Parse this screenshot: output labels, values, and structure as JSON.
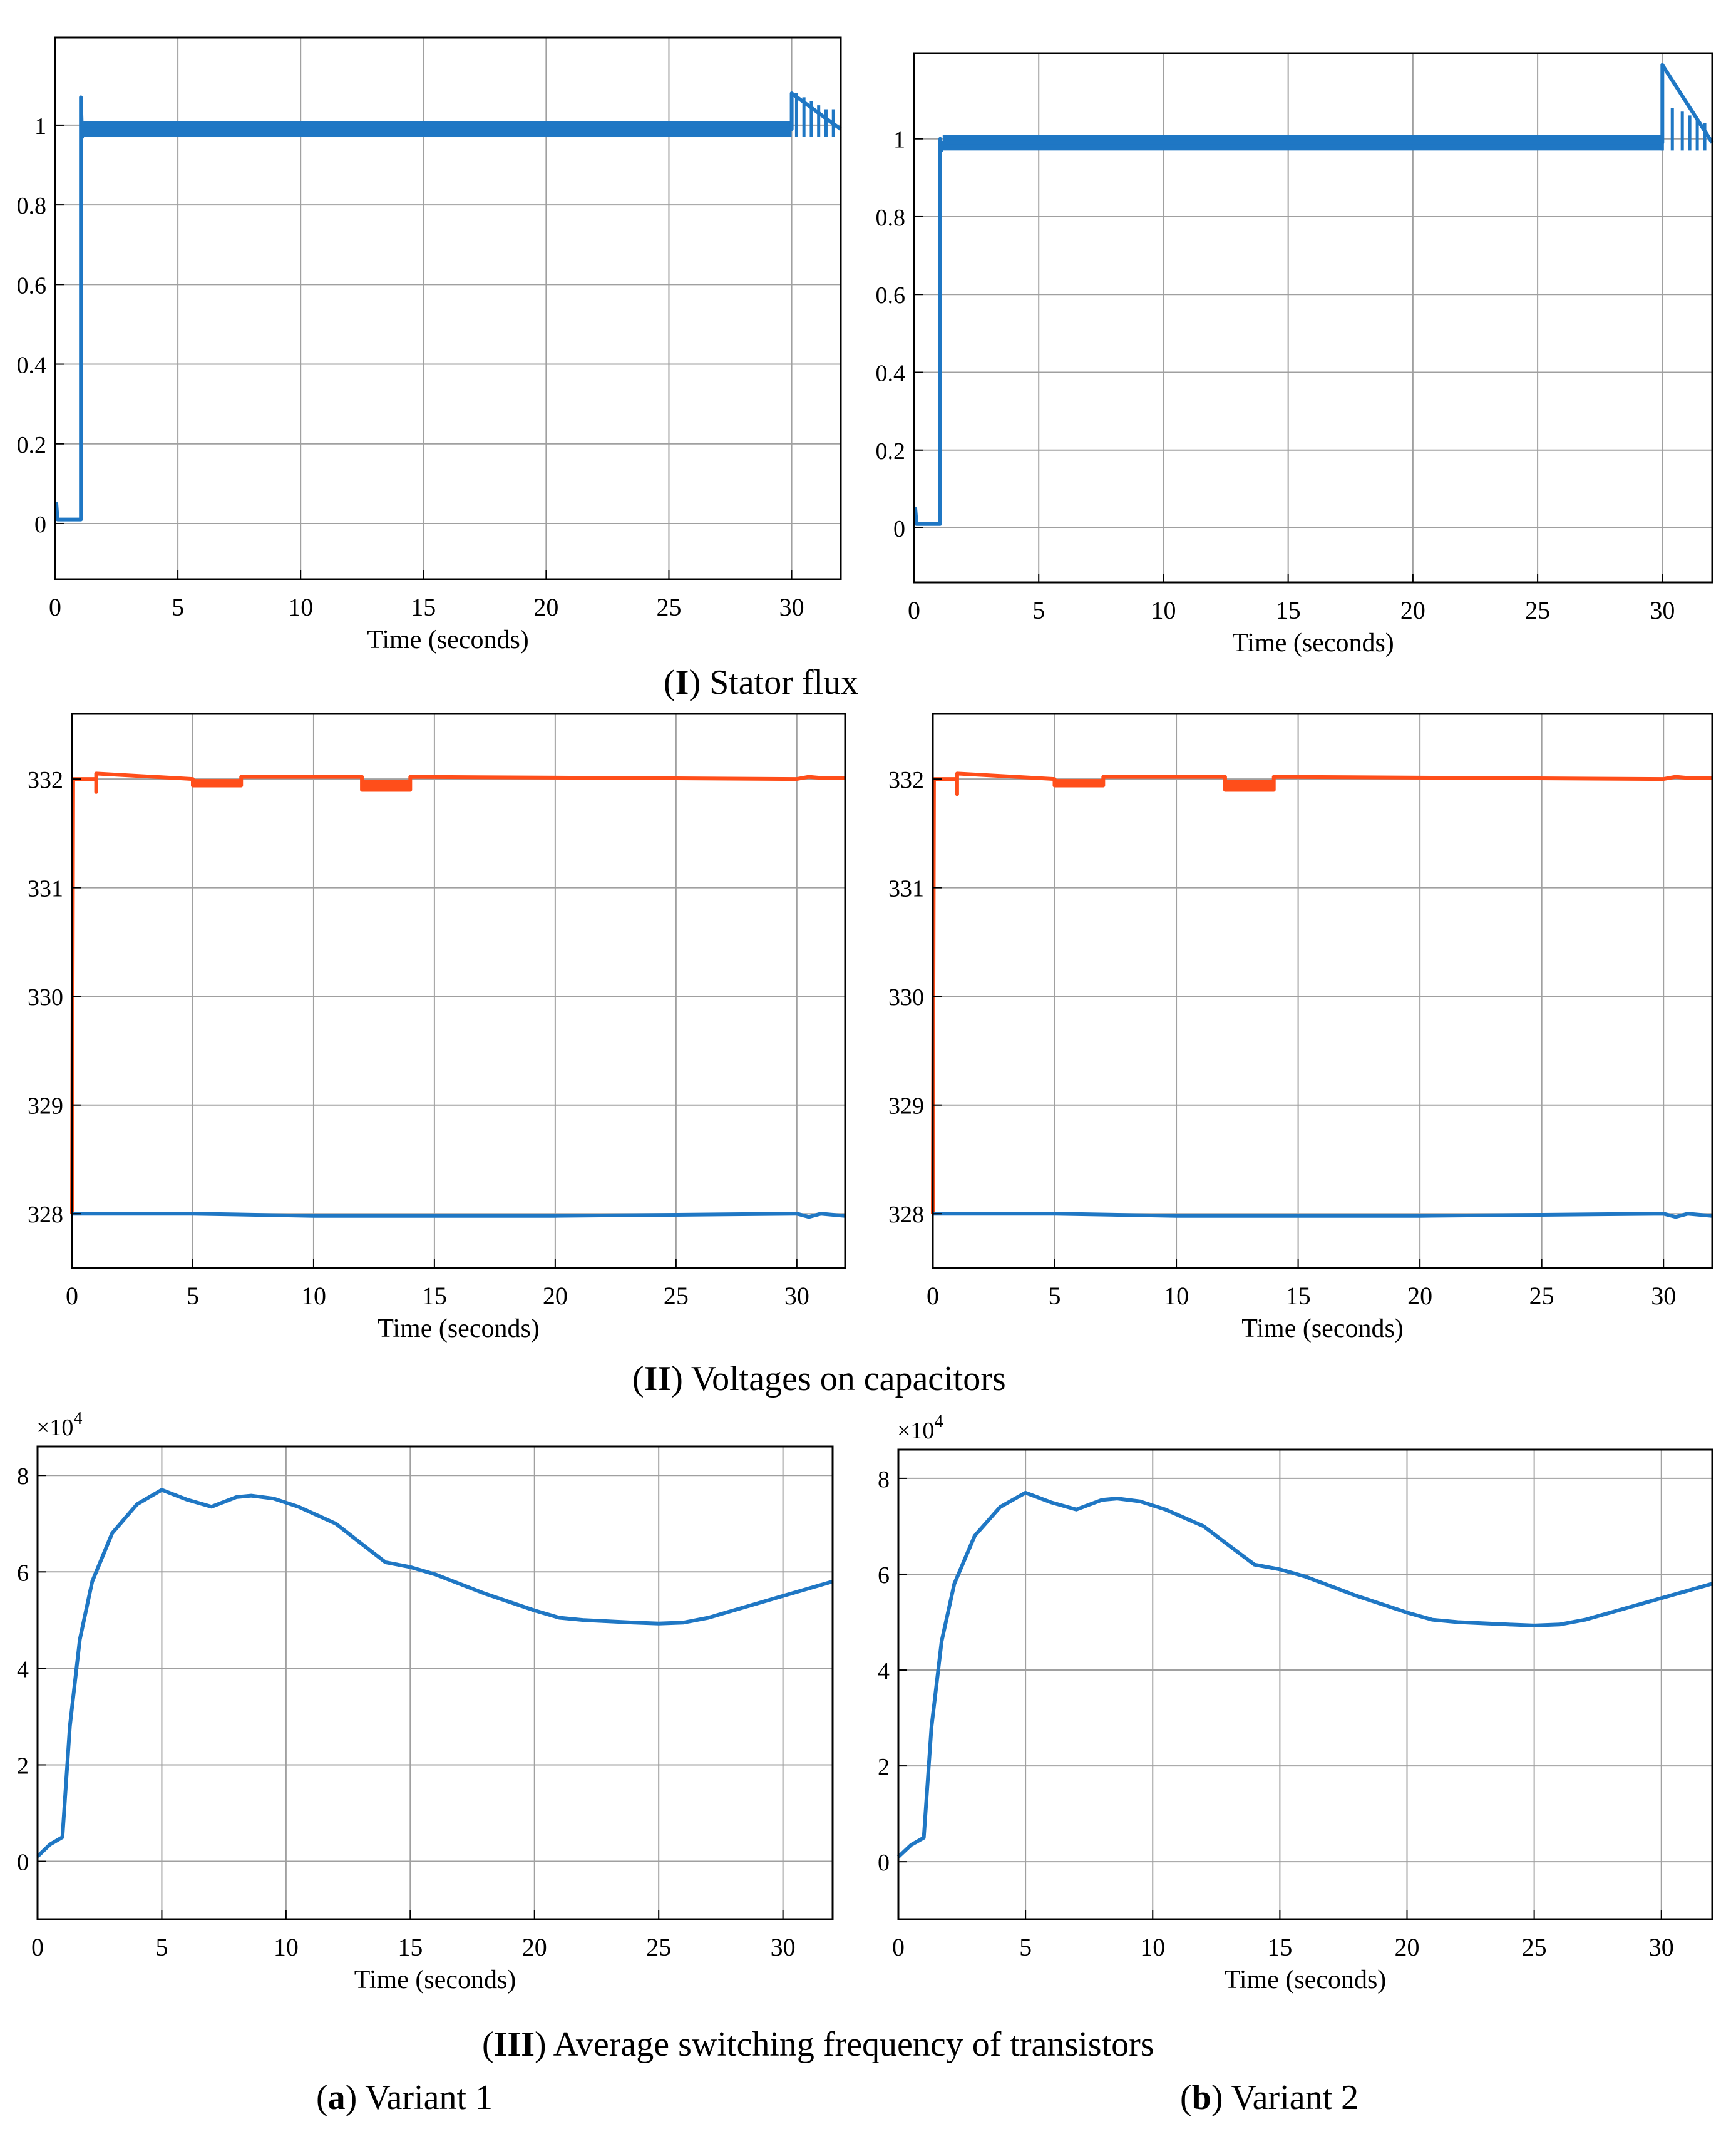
{
  "captions": {
    "row1": {
      "num": "I",
      "text": ") Stator flux"
    },
    "row2": {
      "num": "II",
      "text": ") Voltages on capacitors"
    },
    "row3": {
      "num": "III",
      "text": ") Average switching frequency of transistors"
    },
    "variant_a": {
      "letter": "a",
      "text": ") Variant 1"
    },
    "variant_b": {
      "letter": "b",
      "text": ") Variant 2"
    }
  },
  "colors": {
    "series_blue": "#1f77c4",
    "series_orange": "#ff4e1a",
    "grid": "#a0a0a0",
    "axis": "#000000"
  },
  "chart_data": [
    {
      "type": "line",
      "panel": "I-a",
      "xlabel": "Time (seconds)",
      "ylabel": "",
      "xlim": [
        0,
        32
      ],
      "ylim": [
        -0.14,
        1.22
      ],
      "xticks": [
        0,
        5,
        10,
        15,
        20,
        25,
        30
      ],
      "yticks": [
        0,
        0.2,
        0.4,
        0.6,
        0.8,
        1
      ],
      "yticklabels": [
        "0",
        "0.2",
        "0.4",
        "0.6",
        "0.8",
        "1"
      ],
      "grid": true,
      "series": [
        {
          "color": "#1f77c4",
          "band": [
            0.97,
            1.01
          ],
          "x": [
            0,
            0.05,
            0.1,
            1.05,
            1.05,
            1.1,
            1.15,
            30,
            30,
            32
          ],
          "y": [
            0.05,
            0.05,
            0.01,
            0.01,
            1.07,
            0.97,
            0.99,
            0.99,
            1.08,
            0.99
          ],
          "spikes": [
            {
              "x": 30.2,
              "y": 1.08
            },
            {
              "x": 30.5,
              "y": 1.07
            },
            {
              "x": 30.8,
              "y": 1.06
            },
            {
              "x": 31.1,
              "y": 1.05
            },
            {
              "x": 31.4,
              "y": 1.04
            },
            {
              "x": 31.7,
              "y": 1.04
            }
          ]
        }
      ]
    },
    {
      "type": "line",
      "panel": "I-b",
      "xlabel": "Time (seconds)",
      "ylabel": "",
      "xlim": [
        0,
        32
      ],
      "ylim": [
        -0.14,
        1.22
      ],
      "xticks": [
        0,
        5,
        10,
        15,
        20,
        25,
        30
      ],
      "yticks": [
        0,
        0.2,
        0.4,
        0.6,
        0.8,
        1
      ],
      "yticklabels": [
        "0",
        "0.2",
        "0.4",
        "0.6",
        "0.8",
        "1"
      ],
      "grid": true,
      "series": [
        {
          "color": "#1f77c4",
          "band": [
            0.97,
            1.01
          ],
          "x": [
            0,
            0.05,
            0.1,
            1.05,
            1.05,
            1.1,
            1.15,
            30,
            30,
            32
          ],
          "y": [
            0.05,
            0.05,
            0.01,
            0.01,
            1.0,
            0.97,
            0.99,
            0.99,
            1.19,
            0.99
          ],
          "spikes": [
            {
              "x": 30.0,
              "y": 1.19
            },
            {
              "x": 30.4,
              "y": 1.08
            },
            {
              "x": 30.8,
              "y": 1.07
            },
            {
              "x": 31.1,
              "y": 1.06
            },
            {
              "x": 31.4,
              "y": 1.05
            },
            {
              "x": 31.7,
              "y": 1.04
            }
          ]
        }
      ]
    },
    {
      "type": "line",
      "panel": "II-a",
      "xlabel": "Time (seconds)",
      "ylabel": "",
      "xlim": [
        0,
        32
      ],
      "ylim": [
        327.5,
        332.6
      ],
      "xticks": [
        0,
        5,
        10,
        15,
        20,
        25,
        30
      ],
      "yticks": [
        328,
        329,
        330,
        331,
        332
      ],
      "yticklabels": [
        "328",
        "329",
        "330",
        "331",
        "332"
      ],
      "grid": true,
      "series": [
        {
          "color": "#ff4e1a",
          "x": [
            0,
            0.05,
            0.1,
            1,
            1,
            1,
            5,
            5,
            7,
            7,
            12,
            12,
            14,
            14,
            30,
            30.5,
            31,
            32
          ],
          "y": [
            328,
            332,
            332,
            332,
            331.88,
            332.05,
            332,
            331.94,
            331.94,
            332.02,
            332.02,
            331.9,
            331.9,
            332.02,
            332,
            332.02,
            332.01,
            332.01
          ],
          "blocks": [
            {
              "x0": 5,
              "x1": 7,
              "y0": 331.93,
              "y1": 332
            },
            {
              "x0": 12,
              "x1": 14,
              "y0": 331.89,
              "y1": 331.99
            }
          ]
        },
        {
          "color": "#1f77c4",
          "x": [
            0,
            5,
            10,
            15,
            20,
            25,
            30,
            30.5,
            31,
            32
          ],
          "y": [
            328,
            328,
            327.98,
            327.98,
            327.98,
            327.99,
            328,
            327.97,
            328,
            327.98
          ]
        }
      ]
    },
    {
      "type": "line",
      "panel": "II-b",
      "xlabel": "Time (seconds)",
      "ylabel": "",
      "xlim": [
        0,
        32
      ],
      "ylim": [
        327.5,
        332.6
      ],
      "xticks": [
        0,
        5,
        10,
        15,
        20,
        25,
        30
      ],
      "yticks": [
        328,
        329,
        330,
        331,
        332
      ],
      "yticklabels": [
        "328",
        "329",
        "330",
        "331",
        "332"
      ],
      "grid": true,
      "series": [
        {
          "color": "#ff4e1a",
          "x": [
            0,
            0.05,
            0.1,
            1,
            1,
            1,
            5,
            5,
            7,
            7,
            12,
            12,
            14,
            14,
            30,
            30.5,
            31,
            32
          ],
          "y": [
            328,
            332,
            332,
            332,
            331.86,
            332.05,
            332,
            331.94,
            331.94,
            332.02,
            332.02,
            331.9,
            331.9,
            332.02,
            332,
            332.02,
            332.01,
            332.01
          ],
          "blocks": [
            {
              "x0": 5,
              "x1": 7,
              "y0": 331.93,
              "y1": 332
            },
            {
              "x0": 12,
              "x1": 14,
              "y0": 331.89,
              "y1": 331.99
            }
          ]
        },
        {
          "color": "#1f77c4",
          "x": [
            0,
            5,
            10,
            15,
            20,
            25,
            30,
            30.5,
            31,
            32
          ],
          "y": [
            328,
            328,
            327.98,
            327.98,
            327.98,
            327.99,
            328,
            327.97,
            328,
            327.98
          ]
        }
      ]
    },
    {
      "type": "line",
      "panel": "III-a",
      "xlabel": "Time (seconds)",
      "ylabel": "",
      "exponent_label": "×10",
      "exponent_power": "4",
      "xlim": [
        0,
        32
      ],
      "ylim": [
        -1.2,
        8.6
      ],
      "xticks": [
        0,
        5,
        10,
        15,
        20,
        25,
        30
      ],
      "yticks": [
        0,
        2,
        4,
        6,
        8
      ],
      "yticklabels": [
        "0",
        "2",
        "4",
        "6",
        "8"
      ],
      "grid": true,
      "series": [
        {
          "color": "#1f77c4",
          "x": [
            0,
            0.5,
            1,
            1.3,
            1.7,
            2.2,
            3,
            4,
            5,
            6,
            7,
            8,
            8.6,
            9.5,
            10.5,
            12,
            13,
            14,
            15,
            16,
            18,
            20,
            21,
            22,
            24,
            25,
            26,
            27,
            28,
            29,
            30,
            31,
            32
          ],
          "y": [
            0.1,
            0.35,
            0.5,
            2.8,
            4.6,
            5.8,
            6.8,
            7.4,
            7.7,
            7.5,
            7.35,
            7.55,
            7.58,
            7.52,
            7.35,
            7.0,
            6.6,
            6.2,
            6.1,
            5.95,
            5.55,
            5.2,
            5.05,
            5.0,
            4.95,
            4.93,
            4.95,
            5.05,
            5.2,
            5.35,
            5.5,
            5.65,
            5.8
          ]
        }
      ]
    },
    {
      "type": "line",
      "panel": "III-b",
      "xlabel": "Time (seconds)",
      "ylabel": "",
      "exponent_label": "×10",
      "exponent_power": "4",
      "xlim": [
        0,
        32
      ],
      "ylim": [
        -1.2,
        8.6
      ],
      "xticks": [
        0,
        5,
        10,
        15,
        20,
        25,
        30
      ],
      "yticks": [
        0,
        2,
        4,
        6,
        8
      ],
      "yticklabels": [
        "0",
        "2",
        "4",
        "6",
        "8"
      ],
      "grid": true,
      "series": [
        {
          "color": "#1f77c4",
          "x": [
            0,
            0.5,
            1,
            1.3,
            1.7,
            2.2,
            3,
            4,
            5,
            6,
            7,
            8,
            8.6,
            9.5,
            10.5,
            12,
            13,
            14,
            15,
            16,
            18,
            20,
            21,
            22,
            24,
            25,
            26,
            27,
            28,
            29,
            30,
            31,
            32
          ],
          "y": [
            0.1,
            0.35,
            0.5,
            2.8,
            4.6,
            5.8,
            6.8,
            7.4,
            7.7,
            7.5,
            7.35,
            7.55,
            7.58,
            7.52,
            7.35,
            7.0,
            6.6,
            6.2,
            6.1,
            5.95,
            5.55,
            5.2,
            5.05,
            5.0,
            4.95,
            4.93,
            4.95,
            5.05,
            5.2,
            5.35,
            5.5,
            5.65,
            5.8
          ]
        }
      ]
    }
  ]
}
